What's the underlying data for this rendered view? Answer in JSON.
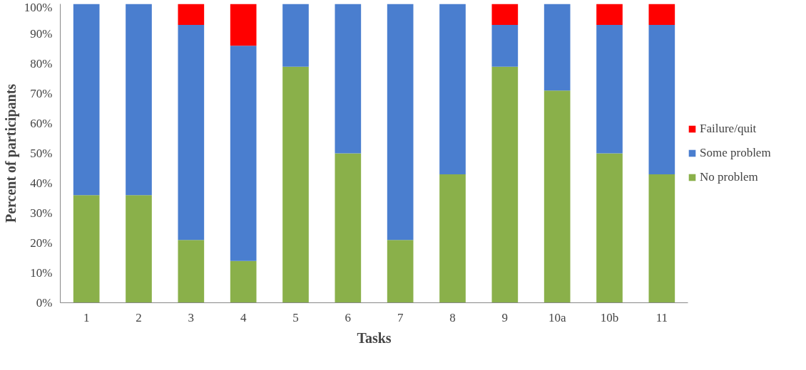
{
  "chart_data": {
    "type": "bar",
    "stacked": true,
    "xlabel": "Tasks",
    "ylabel": "Percent of participants",
    "categories": [
      "1",
      "2",
      "3",
      "4",
      "5",
      "6",
      "7",
      "8",
      "9",
      "10a",
      "10b",
      "11"
    ],
    "series": [
      {
        "name": "No problem",
        "color": "#8ab04a",
        "values": [
          36,
          36,
          21,
          14,
          79,
          50,
          21,
          43,
          79,
          71,
          50,
          43
        ]
      },
      {
        "name": "Some problem",
        "color": "#4a7ecf",
        "values": [
          64,
          64,
          72,
          72,
          21,
          50,
          79,
          57,
          14,
          29,
          43,
          50
        ]
      },
      {
        "name": "Failure/quit",
        "color": "#ff0000",
        "values": [
          0,
          0,
          7,
          14,
          0,
          0,
          0,
          0,
          7,
          0,
          7,
          7
        ]
      }
    ],
    "ylim": [
      0,
      100
    ],
    "yticks": [
      {
        "value": 0,
        "label": "0%"
      },
      {
        "value": 10,
        "label": "10%"
      },
      {
        "value": 20,
        "label": "20%"
      },
      {
        "value": 30,
        "label": "30%"
      },
      {
        "value": 40,
        "label": "40%"
      },
      {
        "value": 50,
        "label": "50%"
      },
      {
        "value": 60,
        "label": "60%"
      },
      {
        "value": 70,
        "label": "70%"
      },
      {
        "value": 80,
        "label": "80%"
      },
      {
        "value": 90,
        "label": "90%"
      },
      {
        "value": 100,
        "label": "100%"
      }
    ],
    "grid": false,
    "legend": "right"
  }
}
